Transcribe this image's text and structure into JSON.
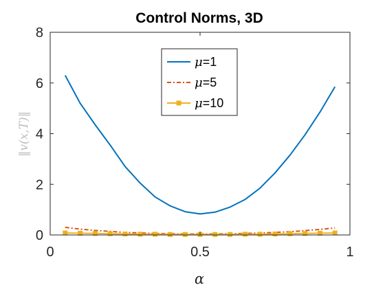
{
  "chart_data": {
    "type": "line",
    "title": "Control Norms, 3D",
    "xlabel": "α",
    "ylabel": "‖v(x,T)‖",
    "xlim": [
      0,
      1
    ],
    "ylim": [
      0,
      8
    ],
    "xticks": [
      0,
      0.5,
      1
    ],
    "xtick_labels": [
      "0",
      "0.5",
      "1"
    ],
    "yticks": [
      0,
      2,
      4,
      6,
      8
    ],
    "ytick_labels": [
      "0",
      "2",
      "4",
      "6",
      "8"
    ],
    "grid": false,
    "legend_position": "top-center",
    "series": [
      {
        "name": "μ=1",
        "legend_symbol": "μ",
        "legend_value": "=1",
        "color": "#0072BD",
        "line_style": "solid",
        "marker": "none",
        "x": [
          0.05,
          0.1,
          0.15,
          0.2,
          0.25,
          0.3,
          0.35,
          0.4,
          0.45,
          0.5,
          0.55,
          0.6,
          0.65,
          0.7,
          0.75,
          0.8,
          0.85,
          0.9,
          0.95
        ],
        "values": [
          6.3,
          5.2,
          4.35,
          3.55,
          2.7,
          2.05,
          1.5,
          1.15,
          0.92,
          0.83,
          0.9,
          1.1,
          1.4,
          1.85,
          2.45,
          3.15,
          3.95,
          4.85,
          5.85
        ]
      },
      {
        "name": "μ=5",
        "legend_symbol": "μ",
        "legend_value": "=5",
        "color": "#D95319",
        "line_style": "dashdot",
        "marker": "none",
        "x": [
          0.05,
          0.1,
          0.15,
          0.2,
          0.25,
          0.3,
          0.35,
          0.4,
          0.45,
          0.5,
          0.55,
          0.6,
          0.65,
          0.7,
          0.75,
          0.8,
          0.85,
          0.9,
          0.95
        ],
        "values": [
          0.3,
          0.23,
          0.18,
          0.14,
          0.1,
          0.08,
          0.06,
          0.05,
          0.04,
          0.04,
          0.04,
          0.05,
          0.06,
          0.08,
          0.1,
          0.13,
          0.17,
          0.22,
          0.28
        ]
      },
      {
        "name": "μ=10",
        "legend_symbol": "μ",
        "legend_value": "=10",
        "color": "#EDB120",
        "line_style": "solid",
        "marker": "square",
        "x": [
          0.05,
          0.1,
          0.15,
          0.2,
          0.25,
          0.3,
          0.35,
          0.4,
          0.45,
          0.5,
          0.55,
          0.6,
          0.65,
          0.7,
          0.75,
          0.8,
          0.85,
          0.9,
          0.95
        ],
        "values": [
          0.08,
          0.07,
          0.06,
          0.05,
          0.04,
          0.03,
          0.03,
          0.02,
          0.02,
          0.02,
          0.02,
          0.02,
          0.03,
          0.03,
          0.04,
          0.05,
          0.06,
          0.07,
          0.08
        ]
      }
    ]
  }
}
